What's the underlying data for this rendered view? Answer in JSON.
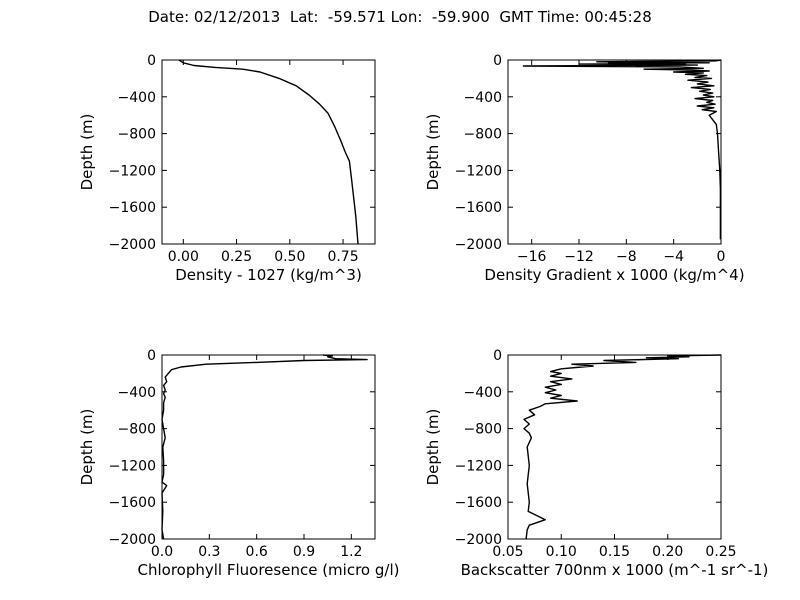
{
  "figure": {
    "title": "Date: 02/12/2013  Lat:  -59.571 Lon:  -59.900  GMT Time: 00:45:28"
  },
  "chart_data": [
    {
      "type": "line",
      "id": "density",
      "xlabel": "Density - 1027 (kg/m^3)",
      "ylabel": "Depth (m)",
      "xlim": [
        -0.1,
        0.9
      ],
      "ylim": [
        -2000,
        0
      ],
      "xticks": [
        0.0,
        0.25,
        0.5,
        0.75
      ],
      "xtick_labels": [
        "0.00",
        "0.25",
        "0.50",
        "0.75"
      ],
      "yticks": [
        0,
        -400,
        -800,
        -1200,
        -1600,
        -2000
      ],
      "ytick_labels": [
        "0",
        "−400",
        "−800",
        "−1200",
        "−1600",
        "−2000"
      ],
      "x": [
        -0.02,
        0.0,
        0.05,
        0.15,
        0.28,
        0.36,
        0.45,
        0.53,
        0.59,
        0.64,
        0.68,
        0.71,
        0.74,
        0.76,
        0.78,
        0.79,
        0.8,
        0.81,
        0.815,
        0.82
      ],
      "y": [
        0,
        -30,
        -60,
        -80,
        -100,
        -130,
        -200,
        -280,
        -380,
        -480,
        -580,
        -720,
        -880,
        -1000,
        -1100,
        -1300,
        -1500,
        -1700,
        -1850,
        -2000
      ]
    },
    {
      "type": "line",
      "id": "density_gradient",
      "xlabel": "Density Gradient x 1000 (kg/m^4)",
      "ylabel": "Depth (m)",
      "xlim": [
        -18,
        0
      ],
      "ylim": [
        -2000,
        0
      ],
      "xticks": [
        -16,
        -12,
        -8,
        -4,
        0
      ],
      "xtick_labels": [
        "−16",
        "−12",
        "−8",
        "−4",
        "0"
      ],
      "yticks": [
        0,
        -400,
        -800,
        -1200,
        -1600,
        -2000
      ],
      "ytick_labels": [
        "0",
        "−400",
        "−800",
        "−1200",
        "−1600",
        "−2000"
      ],
      "x": [
        0,
        -0.5,
        -10.5,
        -1.0,
        -9.5,
        -3.0,
        -12.0,
        -5.5,
        -2.0,
        -16.7,
        -3.5,
        -1.5,
        -6.5,
        -2.5,
        -1.0,
        -4.0,
        -1.5,
        -3.0,
        -1.2,
        -2.2,
        -0.8,
        -2.8,
        -1.1,
        -2.0,
        -0.6,
        -2.5,
        -0.9,
        -1.8,
        -0.7,
        -1.5,
        -0.6,
        -2.2,
        -0.7,
        -1.2,
        -0.5,
        -2.0,
        -0.6,
        -1.6,
        -0.4,
        -1.0,
        -0.4,
        -0.3,
        -0.2,
        -0.1,
        -0.05,
        -0.05,
        -0.05
      ],
      "y": [
        0,
        -10,
        -20,
        -30,
        -35,
        -40,
        -45,
        -50,
        -55,
        -65,
        -75,
        -90,
        -100,
        -110,
        -120,
        -130,
        -140,
        -155,
        -170,
        -190,
        -200,
        -220,
        -240,
        -260,
        -280,
        -300,
        -320,
        -340,
        -360,
        -380,
        -400,
        -420,
        -440,
        -460,
        -480,
        -500,
        -520,
        -540,
        -560,
        -600,
        -700,
        -800,
        -1000,
        -1200,
        -1400,
        -1700,
        -1950
      ]
    },
    {
      "type": "line",
      "id": "chlorophyll",
      "xlabel": "Chlorophyll Fluoresence (micro g/l)",
      "ylabel": "Depth (m)",
      "xlim": [
        0.0,
        1.35
      ],
      "ylim": [
        -2000,
        0
      ],
      "xticks": [
        0.0,
        0.3,
        0.6,
        0.9,
        1.2
      ],
      "xtick_labels": [
        "0.0",
        "0.3",
        "0.6",
        "0.9",
        "1.2"
      ],
      "yticks": [
        0,
        -400,
        -800,
        -1200,
        -1600,
        -2000
      ],
      "ytick_labels": [
        "0",
        "−400",
        "−800",
        "−1200",
        "−1600",
        "−2000"
      ],
      "x": [
        1.02,
        1.08,
        1.05,
        1.1,
        1.3,
        0.9,
        0.6,
        0.28,
        0.12,
        0.06,
        0.04,
        0.02,
        0.03,
        0.01,
        0.02,
        0.01,
        0.02,
        0.01,
        0.01,
        0.0,
        0.01,
        0.02,
        0.005,
        0.01,
        0.01,
        0.0,
        0.03,
        0.0,
        0.005,
        0.0,
        0.01
      ],
      "y": [
        0,
        -10,
        -20,
        -40,
        -50,
        -60,
        -80,
        -100,
        -130,
        -160,
        -200,
        -240,
        -290,
        -330,
        -380,
        -420,
        -460,
        -520,
        -600,
        -700,
        -800,
        -900,
        -1000,
        -1150,
        -1300,
        -1380,
        -1420,
        -1500,
        -1700,
        -1900,
        -2000
      ]
    },
    {
      "type": "line",
      "id": "backscatter",
      "xlabel": "Backscatter 700nm x 1000 (m^-1 sr^-1)",
      "ylabel": "Depth (m)",
      "xlim": [
        0.05,
        0.25
      ],
      "ylim": [
        -2000,
        0
      ],
      "xticks": [
        0.05,
        0.1,
        0.15,
        0.2,
        0.25
      ],
      "xtick_labels": [
        "0.05",
        "0.10",
        "0.15",
        "0.20",
        "0.25"
      ],
      "yticks": [
        0,
        -400,
        -800,
        -1200,
        -1600,
        -2000
      ],
      "ytick_labels": [
        "0",
        "−400",
        "−800",
        "−1200",
        "−1600",
        "−2000"
      ],
      "x": [
        0.25,
        0.2,
        0.22,
        0.18,
        0.21,
        0.14,
        0.17,
        0.11,
        0.13,
        0.1,
        0.09,
        0.1,
        0.09,
        0.11,
        0.09,
        0.1,
        0.085,
        0.095,
        0.085,
        0.1,
        0.09,
        0.115,
        0.085,
        0.08,
        0.07,
        0.075,
        0.065,
        0.07,
        0.065,
        0.07,
        0.072,
        0.068,
        0.07,
        0.068,
        0.07,
        0.069,
        0.085,
        0.07,
        0.068,
        0.067
      ],
      "y": [
        0,
        -10,
        -20,
        -30,
        -40,
        -60,
        -80,
        -100,
        -120,
        -150,
        -180,
        -200,
        -230,
        -260,
        -290,
        -320,
        -350,
        -380,
        -410,
        -440,
        -470,
        -500,
        -530,
        -560,
        -600,
        -650,
        -700,
        -750,
        -800,
        -850,
        -900,
        -1000,
        -1200,
        -1400,
        -1600,
        -1700,
        -1790,
        -1850,
        -1900,
        -2000
      ]
    }
  ]
}
